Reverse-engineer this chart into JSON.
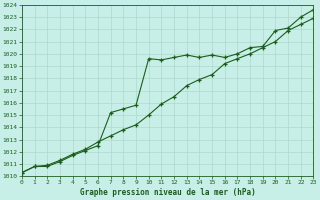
{
  "title": "Graphe pression niveau de la mer (hPa)",
  "bg_color": "#c8eee8",
  "grid_color": "#b0d8cc",
  "line_color": "#1a5e1a",
  "xlim": [
    0,
    23
  ],
  "ylim": [
    1010,
    1024
  ],
  "xticks": [
    0,
    1,
    2,
    3,
    4,
    5,
    6,
    7,
    8,
    9,
    10,
    11,
    12,
    13,
    14,
    15,
    16,
    17,
    18,
    19,
    20,
    21,
    22,
    23
  ],
  "yticks": [
    1010,
    1011,
    1012,
    1013,
    1014,
    1015,
    1016,
    1017,
    1018,
    1019,
    1020,
    1021,
    1022,
    1023,
    1024
  ],
  "series1_x": [
    0,
    1,
    2,
    3,
    4,
    5,
    6,
    7,
    8,
    9,
    10,
    11,
    12,
    13,
    14,
    15,
    16,
    17,
    18,
    19,
    20,
    21,
    22,
    23
  ],
  "series1_y": [
    1010.3,
    1010.8,
    1010.8,
    1011.2,
    1011.7,
    1012.1,
    1012.5,
    1015.2,
    1015.5,
    1015.8,
    1019.6,
    1019.5,
    1019.7,
    1019.9,
    1019.7,
    1019.9,
    1019.7,
    1020.0,
    1020.5,
    1020.6,
    1021.9,
    1022.1,
    1023.0,
    1023.6
  ],
  "series2_x": [
    0,
    1,
    2,
    3,
    4,
    5,
    6,
    7,
    8,
    9,
    10,
    11,
    12,
    13,
    14,
    15,
    16,
    17,
    18,
    19,
    20,
    21,
    22,
    23
  ],
  "series2_y": [
    1010.3,
    1010.8,
    1010.9,
    1011.3,
    1011.8,
    1012.2,
    1012.8,
    1013.3,
    1013.8,
    1014.2,
    1015.0,
    1015.9,
    1016.5,
    1017.4,
    1017.9,
    1018.3,
    1019.2,
    1019.6,
    1020.0,
    1020.5,
    1021.0,
    1021.9,
    1022.4,
    1022.9
  ]
}
